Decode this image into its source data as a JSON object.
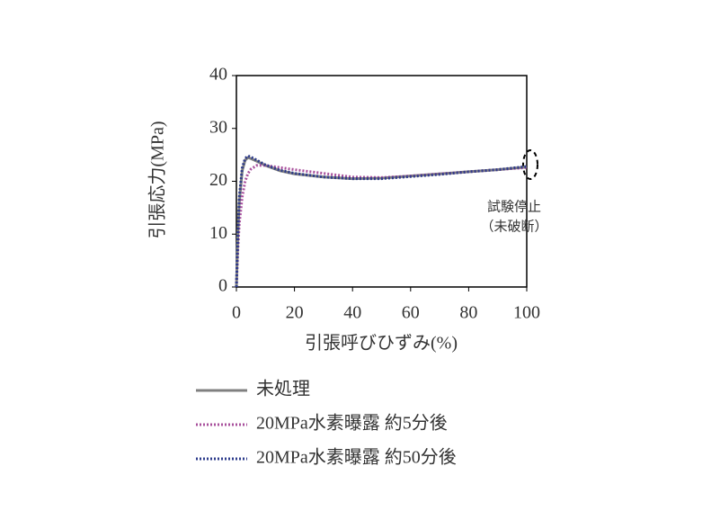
{
  "chart_data": {
    "type": "line",
    "x_label": "引張呼びひずみ(%)",
    "y_label": "引張応力(MPa)",
    "annotations": [
      "試験停止",
      "（未破断）"
    ],
    "x": [
      0,
      0.5,
      1,
      2,
      3,
      4,
      5,
      7,
      10,
      15,
      20,
      30,
      40,
      50,
      60,
      70,
      80,
      90,
      100
    ],
    "series": [
      {
        "name": "未処理",
        "color": "#808080",
        "style": "solid",
        "values": [
          0,
          10,
          16,
          22,
          24,
          24.5,
          24.3,
          23.8,
          23.0,
          22.0,
          21.4,
          20.8,
          20.5,
          20.6,
          21.0,
          21.4,
          21.8,
          22.2,
          22.7
        ]
      },
      {
        "name": "20MPa水素曝露 約5分後",
        "color": "#a8509c",
        "style": "dotted",
        "values": [
          0,
          7,
          12,
          17,
          20,
          21.5,
          22.3,
          23.0,
          23.0,
          22.6,
          22.2,
          21.5,
          20.8,
          20.7,
          21.0,
          21.4,
          21.8,
          22.2,
          22.6
        ]
      },
      {
        "name": "20MPa水素曝露 約50分後",
        "color": "#2e3c8c",
        "style": "dotted",
        "values": [
          0,
          10,
          17,
          22.5,
          24.3,
          24.8,
          24.6,
          24.0,
          23.1,
          22.1,
          21.5,
          20.8,
          20.5,
          20.5,
          20.9,
          21.3,
          21.8,
          22.2,
          22.8
        ]
      }
    ],
    "xlim": [
      0,
      100
    ],
    "xticks": [
      0,
      20,
      40,
      60,
      80,
      100
    ],
    "ylim": [
      0,
      40
    ],
    "yticks": [
      0,
      10,
      20,
      30,
      40
    ]
  }
}
